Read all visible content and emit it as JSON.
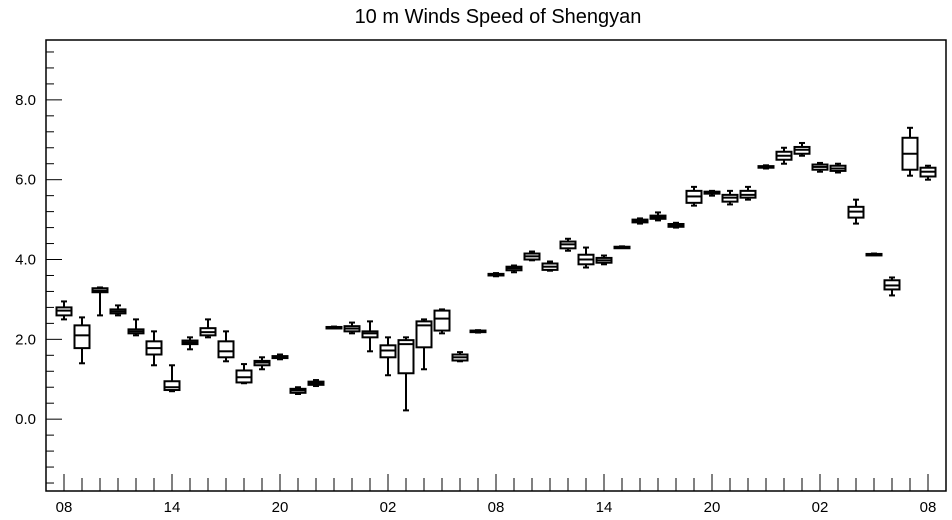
{
  "chart_data": {
    "type": "boxplot",
    "title": "10 m Winds Speed of Shengyan",
    "xlabel": "",
    "ylabel": "",
    "ylim": [
      -1.8,
      9.5
    ],
    "yticks": [
      0.0,
      2.0,
      4.0,
      6.0,
      8.0
    ],
    "ytick_labels": [
      "0.0",
      "2.0",
      "4.0",
      "6.0",
      "8.0"
    ],
    "xlim": [
      -0.5,
      48.5
    ],
    "xticks": [
      0,
      6,
      12,
      18,
      24,
      30,
      36,
      42,
      48
    ],
    "xtick_labels": [
      "08",
      "14",
      "20",
      "02",
      "08",
      "14",
      "20",
      "02",
      "08"
    ],
    "grid": false,
    "boxes": [
      {
        "x": 0,
        "min": 2.5,
        "q1": 2.6,
        "median": 2.72,
        "q3": 2.8,
        "max": 2.95
      },
      {
        "x": 1,
        "min": 1.4,
        "q1": 1.78,
        "median": 2.1,
        "q3": 2.35,
        "max": 2.55
      },
      {
        "x": 2,
        "min": 2.6,
        "q1": 3.18,
        "median": 3.22,
        "q3": 3.28,
        "max": 3.3
      },
      {
        "x": 3,
        "min": 2.6,
        "q1": 2.65,
        "median": 2.7,
        "q3": 2.75,
        "max": 2.85
      },
      {
        "x": 4,
        "min": 2.1,
        "q1": 2.15,
        "median": 2.2,
        "q3": 2.25,
        "max": 2.5
      },
      {
        "x": 5,
        "min": 1.35,
        "q1": 1.62,
        "median": 1.78,
        "q3": 1.95,
        "max": 2.2
      },
      {
        "x": 6,
        "min": 0.7,
        "q1": 0.73,
        "median": 0.8,
        "q3": 0.95,
        "max": 1.35
      },
      {
        "x": 7,
        "min": 1.75,
        "q1": 1.88,
        "median": 1.92,
        "q3": 1.97,
        "max": 2.05
      },
      {
        "x": 8,
        "min": 2.05,
        "q1": 2.1,
        "median": 2.18,
        "q3": 2.28,
        "max": 2.5
      },
      {
        "x": 9,
        "min": 1.45,
        "q1": 1.55,
        "median": 1.7,
        "q3": 1.95,
        "max": 2.2
      },
      {
        "x": 10,
        "min": 0.9,
        "q1": 0.92,
        "median": 1.05,
        "q3": 1.22,
        "max": 1.38
      },
      {
        "x": 11,
        "min": 1.25,
        "q1": 1.35,
        "median": 1.42,
        "q3": 1.46,
        "max": 1.55
      },
      {
        "x": 12,
        "min": 1.5,
        "q1": 1.53,
        "median": 1.56,
        "q3": 1.58,
        "max": 1.62
      },
      {
        "x": 13,
        "min": 0.63,
        "q1": 0.66,
        "median": 0.72,
        "q3": 0.76,
        "max": 0.8
      },
      {
        "x": 14,
        "min": 0.83,
        "q1": 0.86,
        "median": 0.9,
        "q3": 0.94,
        "max": 0.98
      },
      {
        "x": 15,
        "min": 2.28,
        "q1": 2.29,
        "median": 2.3,
        "q3": 2.31,
        "max": 2.32
      },
      {
        "x": 16,
        "min": 2.15,
        "q1": 2.2,
        "median": 2.27,
        "q3": 2.33,
        "max": 2.42
      },
      {
        "x": 17,
        "min": 1.7,
        "q1": 2.05,
        "median": 2.15,
        "q3": 2.2,
        "max": 2.45
      },
      {
        "x": 18,
        "min": 1.1,
        "q1": 1.55,
        "median": 1.72,
        "q3": 1.85,
        "max": 2.05
      },
      {
        "x": 19,
        "min": 0.22,
        "q1": 1.15,
        "median": 1.88,
        "q3": 1.98,
        "max": 2.05
      },
      {
        "x": 20,
        "min": 1.25,
        "q1": 1.8,
        "median": 2.35,
        "q3": 2.45,
        "max": 2.5
      },
      {
        "x": 21,
        "min": 2.15,
        "q1": 2.22,
        "median": 2.52,
        "q3": 2.72,
        "max": 2.75
      },
      {
        "x": 22,
        "min": 1.45,
        "q1": 1.47,
        "median": 1.55,
        "q3": 1.62,
        "max": 1.68
      },
      {
        "x": 23,
        "min": 2.17,
        "q1": 2.18,
        "median": 2.2,
        "q3": 2.22,
        "max": 2.23
      },
      {
        "x": 24,
        "min": 3.58,
        "q1": 3.6,
        "median": 3.62,
        "q3": 3.64,
        "max": 3.66
      },
      {
        "x": 25,
        "min": 3.68,
        "q1": 3.73,
        "median": 3.78,
        "q3": 3.82,
        "max": 3.85
      },
      {
        "x": 26,
        "min": 3.98,
        "q1": 4.0,
        "median": 4.08,
        "q3": 4.15,
        "max": 4.2
      },
      {
        "x": 27,
        "min": 3.72,
        "q1": 3.74,
        "median": 3.82,
        "q3": 3.9,
        "max": 3.95
      },
      {
        "x": 28,
        "min": 4.22,
        "q1": 4.28,
        "median": 4.38,
        "q3": 4.45,
        "max": 4.52
      },
      {
        "x": 29,
        "min": 3.8,
        "q1": 3.88,
        "median": 4.0,
        "q3": 4.12,
        "max": 4.3
      },
      {
        "x": 30,
        "min": 3.88,
        "q1": 3.92,
        "median": 3.98,
        "q3": 4.04,
        "max": 4.1
      },
      {
        "x": 31,
        "min": 4.29,
        "q1": 4.3,
        "median": 4.31,
        "q3": 4.32,
        "max": 4.33
      },
      {
        "x": 32,
        "min": 4.9,
        "q1": 4.93,
        "median": 4.97,
        "q3": 5.0,
        "max": 5.03
      },
      {
        "x": 33,
        "min": 4.98,
        "q1": 5.02,
        "median": 5.06,
        "q3": 5.1,
        "max": 5.18
      },
      {
        "x": 34,
        "min": 4.8,
        "q1": 4.82,
        "median": 4.86,
        "q3": 4.89,
        "max": 4.92
      },
      {
        "x": 35,
        "min": 5.35,
        "q1": 5.42,
        "median": 5.58,
        "q3": 5.72,
        "max": 5.82
      },
      {
        "x": 36,
        "min": 5.6,
        "q1": 5.65,
        "median": 5.68,
        "q3": 5.7,
        "max": 5.72
      },
      {
        "x": 37,
        "min": 5.38,
        "q1": 5.45,
        "median": 5.55,
        "q3": 5.62,
        "max": 5.72
      },
      {
        "x": 38,
        "min": 5.5,
        "q1": 5.55,
        "median": 5.62,
        "q3": 5.72,
        "max": 5.82
      },
      {
        "x": 39,
        "min": 6.28,
        "q1": 6.3,
        "median": 6.32,
        "q3": 6.34,
        "max": 6.36
      },
      {
        "x": 40,
        "min": 6.4,
        "q1": 6.5,
        "median": 6.6,
        "q3": 6.7,
        "max": 6.8
      },
      {
        "x": 41,
        "min": 6.6,
        "q1": 6.65,
        "median": 6.75,
        "q3": 6.82,
        "max": 6.92
      },
      {
        "x": 42,
        "min": 6.2,
        "q1": 6.25,
        "median": 6.32,
        "q3": 6.38,
        "max": 6.42
      },
      {
        "x": 43,
        "min": 6.18,
        "q1": 6.22,
        "median": 6.28,
        "q3": 6.35,
        "max": 6.4
      },
      {
        "x": 44,
        "min": 4.9,
        "q1": 5.05,
        "median": 5.2,
        "q3": 5.32,
        "max": 5.5
      },
      {
        "x": 45,
        "min": 4.11,
        "q1": 4.12,
        "median": 4.13,
        "q3": 4.14,
        "max": 4.15
      },
      {
        "x": 46,
        "min": 3.1,
        "q1": 3.25,
        "median": 3.35,
        "q3": 3.48,
        "max": 3.55
      },
      {
        "x": 47,
        "min": 6.1,
        "q1": 6.25,
        "median": 6.65,
        "q3": 7.05,
        "max": 7.3
      },
      {
        "x": 48,
        "min": 6.0,
        "q1": 6.08,
        "median": 6.2,
        "q3": 6.3,
        "max": 6.35
      }
    ]
  }
}
